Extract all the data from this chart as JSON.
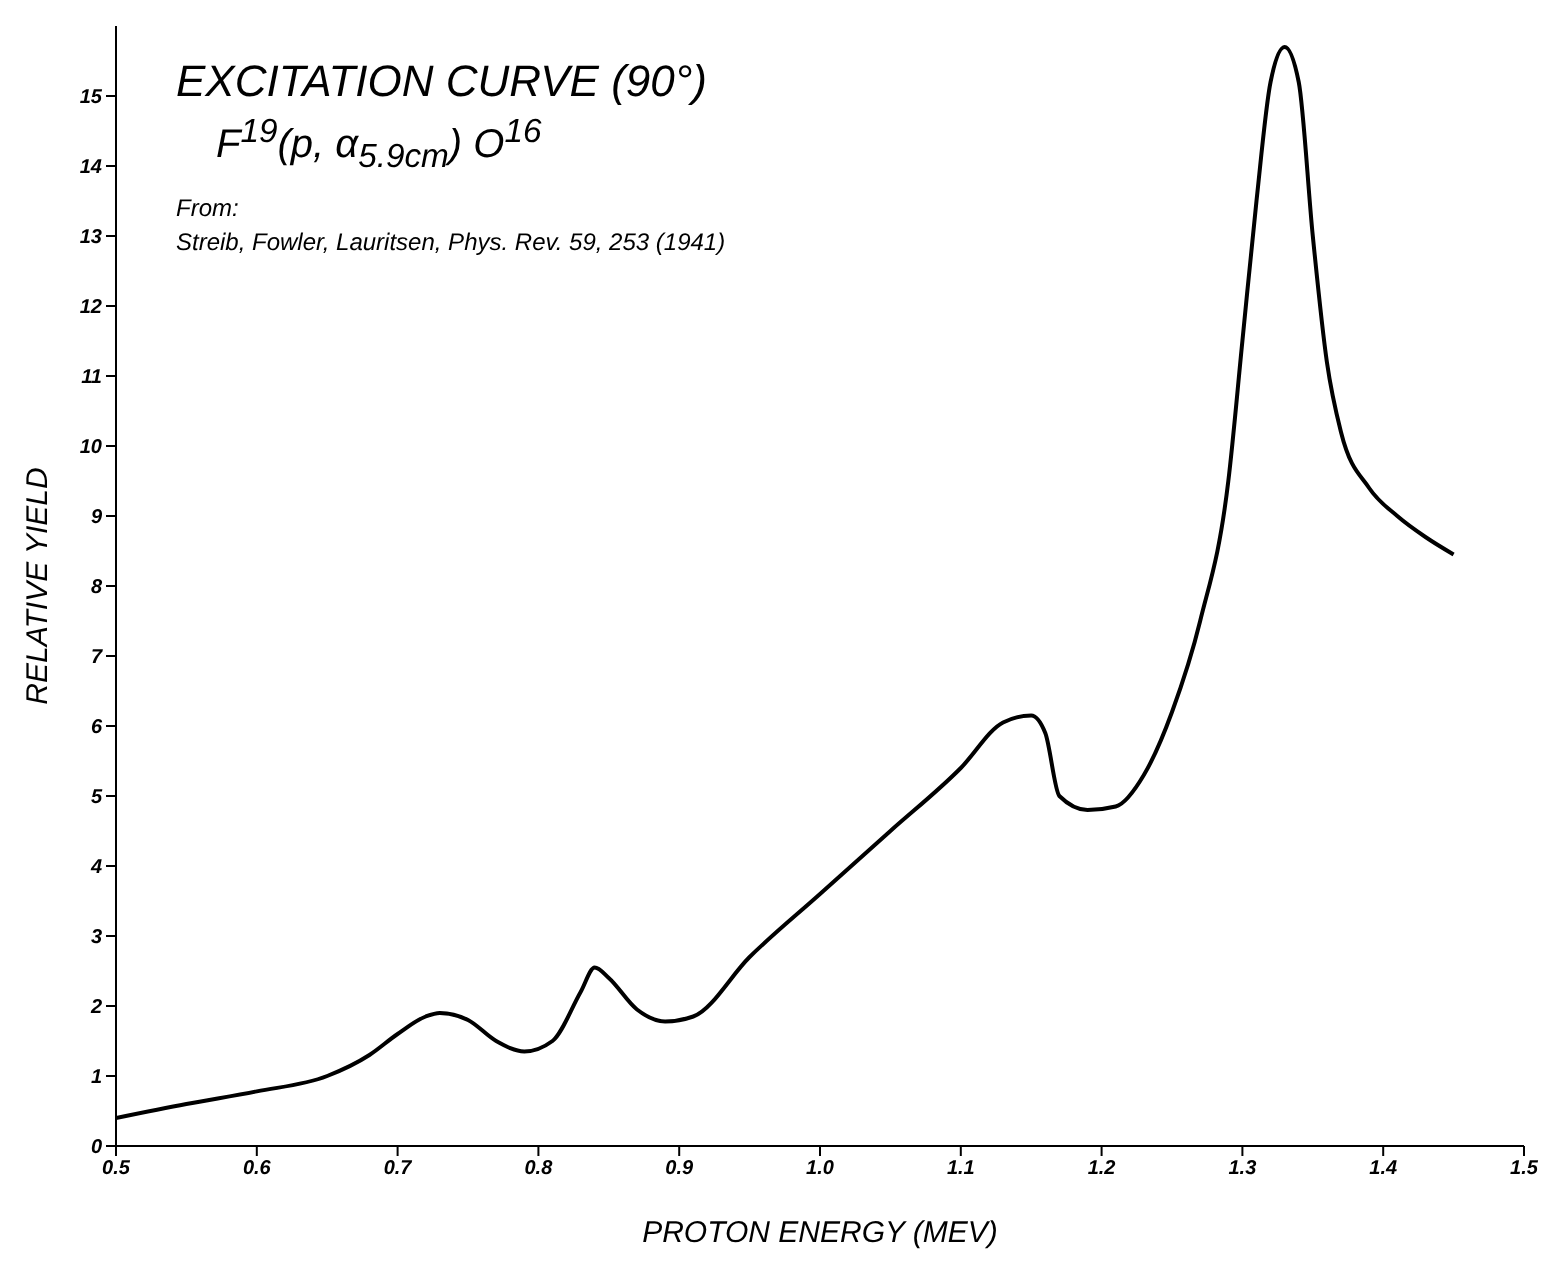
{
  "chart_data": {
    "type": "line",
    "title": "EXCITATION CURVE (90°)",
    "subtitle": "F$^{19}$(p, α$_{5.9cm}$) O$^{16}$",
    "xlabel": "PROTON ENERGY (MEV)",
    "ylabel": "RELATIVE YIELD",
    "annotations": [
      "From:",
      "Streib, Fowler, Lauritsen, Phys. Rev. 59, 253 (1941)"
    ],
    "x": [
      0.5,
      0.55,
      0.6,
      0.65,
      0.68,
      0.7,
      0.72,
      0.73,
      0.75,
      0.77,
      0.79,
      0.81,
      0.83,
      0.84,
      0.85,
      0.87,
      0.89,
      0.91,
      0.95,
      1.0,
      1.05,
      1.1,
      1.13,
      1.15,
      1.16,
      1.17,
      1.19,
      1.21,
      1.23,
      1.25,
      1.27,
      1.29,
      1.3,
      1.31,
      1.32,
      1.33,
      1.34,
      1.35,
      1.36,
      1.37,
      1.39,
      1.41,
      1.43,
      1.45
    ],
    "series": [
      {
        "color": "#000000",
        "values": [
          0.4,
          0.6,
          0.78,
          1.0,
          1.3,
          1.6,
          1.85,
          1.9,
          1.8,
          1.5,
          1.35,
          1.5,
          2.2,
          2.55,
          2.4,
          1.95,
          1.78,
          1.85,
          2.7,
          3.6,
          4.5,
          5.4,
          6.05,
          6.15,
          5.9,
          5.0,
          4.8,
          4.85,
          5.3,
          6.2,
          7.5,
          9.5,
          11.5,
          13.5,
          15.2,
          15.7,
          15.2,
          13,
          11.2,
          10.2,
          9.4,
          9.0,
          8.7,
          8.45
        ]
      }
    ],
    "xlim": [
      0.5,
      1.5
    ],
    "xticks": [
      0.5,
      0.6,
      0.7,
      0.8,
      0.9,
      {
        "value": 1,
        "label": "1.0"
      },
      1.1,
      1.2,
      1.3,
      1.4,
      1.5
    ],
    "ylim": [
      0,
      16
    ],
    "yticks": [
      0,
      1,
      2,
      3,
      4,
      5,
      6,
      7,
      8,
      9,
      10,
      11,
      12,
      13,
      14,
      15
    ],
    "grid": false,
    "legend": false,
    "marker": "none",
    "line_style": "solid"
  }
}
